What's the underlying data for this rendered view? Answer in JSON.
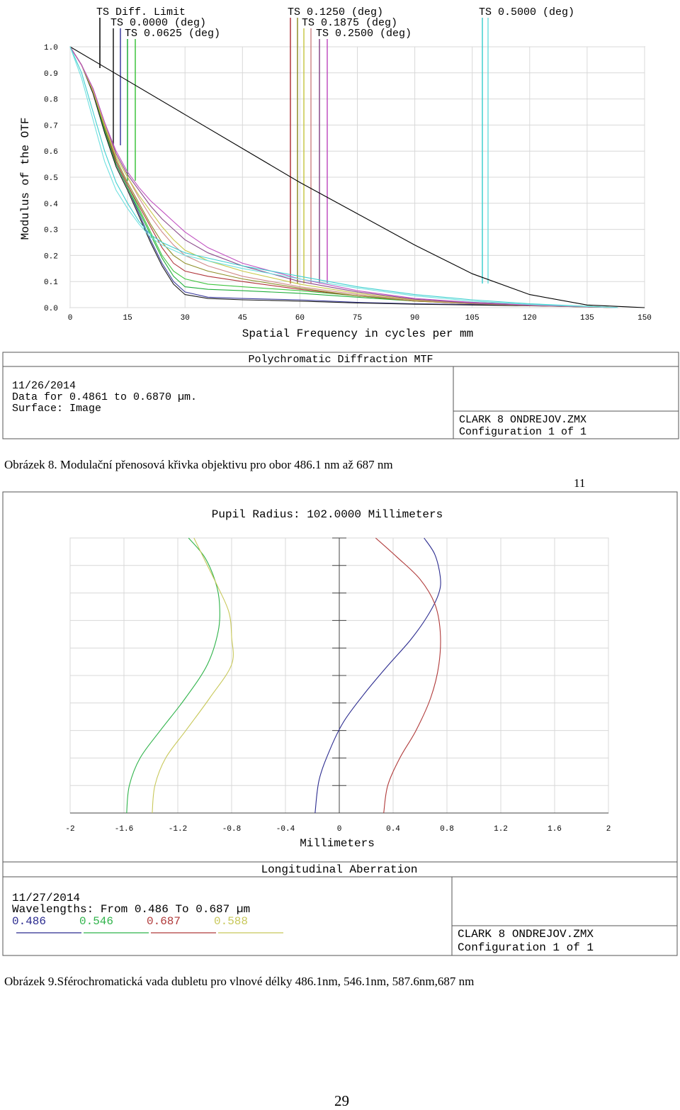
{
  "captions": {
    "fig8": "Obrázek 8. Modulační přenosová křivka objektivu pro obor 486.1 nm až 687 nm",
    "page_marker": "11",
    "fig9": "Obrázek 9.Sférochromatická vada dubletu pro vlnové délky 486.1nm, 546.1nm, 587.6nm,687 nm",
    "page_number": "29"
  },
  "chart_data": [
    {
      "type": "line",
      "title": "Polychromatic Diffraction MTF",
      "xlabel": "Spatial Frequency in cycles per mm",
      "ylabel": "Modulus of the OTF",
      "xlim": [
        0,
        150
      ],
      "ylim": [
        0,
        1
      ],
      "x_ticks": [
        "0",
        "15",
        "30",
        "45",
        "60",
        "75",
        "90",
        "105",
        "120",
        "135",
        "150"
      ],
      "y_ticks": [
        "0.0",
        "0.1",
        "0.2",
        "0.3",
        "0.4",
        "0.5",
        "0.6",
        "0.7",
        "0.8",
        "0.9",
        "1.0"
      ],
      "grid": true,
      "legend_placement": "top",
      "legend": [
        {
          "label": "TS Diff. Limit",
          "colors": [
            "#000000"
          ]
        },
        {
          "label": "TS 0.0000 (deg)",
          "colors": [
            "#1a1a1a",
            "#3d3d9e"
          ]
        },
        {
          "label": "TS 0.0625 (deg)",
          "colors": [
            "#1fae3a",
            "#3fc43f"
          ]
        },
        {
          "label": "TS 0.1250 (deg)",
          "colors": [
            "#b0343a",
            "#8f8f2a"
          ]
        },
        {
          "label": "TS 0.1875 (deg)",
          "colors": [
            "#c8c84a",
            "#d08a8a"
          ]
        },
        {
          "label": "TS 0.2500 (deg)",
          "colors": [
            "#8a4a8a",
            "#c050c0"
          ]
        },
        {
          "label": "TS 0.5000 (deg)",
          "colors": [
            "#40d0d0",
            "#70e0e0"
          ]
        }
      ],
      "series": [
        {
          "color": "#000000",
          "x": [
            0,
            15,
            30,
            45,
            60,
            75,
            90,
            105,
            120,
            135,
            150
          ],
          "y": [
            1.0,
            0.87,
            0.74,
            0.61,
            0.48,
            0.36,
            0.24,
            0.13,
            0.05,
            0.01,
            0.0
          ]
        },
        {
          "color": "#3d3d9e",
          "x": [
            0,
            3,
            6,
            9,
            12,
            15,
            18,
            21,
            24,
            27,
            30,
            36,
            45,
            60,
            75,
            90,
            105,
            120,
            135,
            143
          ],
          "y": [
            1.0,
            0.93,
            0.83,
            0.68,
            0.55,
            0.46,
            0.36,
            0.26,
            0.17,
            0.1,
            0.06,
            0.04,
            0.035,
            0.03,
            0.02,
            0.015,
            0.012,
            0.008,
            0.004,
            0.0
          ]
        },
        {
          "color": "#1a1a1a",
          "x": [
            0,
            3,
            6,
            9,
            12,
            15,
            18,
            21,
            24,
            27,
            30,
            36,
            45,
            60,
            75,
            90,
            105,
            120,
            135,
            143
          ],
          "y": [
            1.0,
            0.93,
            0.82,
            0.67,
            0.54,
            0.45,
            0.35,
            0.25,
            0.16,
            0.09,
            0.05,
            0.035,
            0.03,
            0.025,
            0.018,
            0.013,
            0.01,
            0.007,
            0.003,
            0.0
          ]
        },
        {
          "color": "#1fae3a",
          "x": [
            0,
            3,
            6,
            9,
            12,
            15,
            18,
            21,
            24,
            27,
            30,
            36,
            45,
            60,
            75,
            90,
            105,
            120,
            135,
            143
          ],
          "y": [
            1.0,
            0.93,
            0.83,
            0.68,
            0.55,
            0.46,
            0.37,
            0.28,
            0.19,
            0.12,
            0.08,
            0.07,
            0.065,
            0.055,
            0.04,
            0.025,
            0.018,
            0.01,
            0.005,
            0.0
          ]
        },
        {
          "color": "#3fc43f",
          "x": [
            0,
            3,
            6,
            9,
            12,
            15,
            18,
            21,
            24,
            27,
            30,
            36,
            45,
            60,
            75,
            90,
            105,
            120,
            135,
            143
          ],
          "y": [
            1.0,
            0.93,
            0.83,
            0.69,
            0.56,
            0.47,
            0.38,
            0.29,
            0.2,
            0.14,
            0.11,
            0.09,
            0.08,
            0.065,
            0.045,
            0.03,
            0.02,
            0.012,
            0.005,
            0.0
          ]
        },
        {
          "color": "#b0343a",
          "x": [
            0,
            3,
            6,
            9,
            12,
            15,
            18,
            21,
            24,
            27,
            30,
            36,
            45,
            60,
            75,
            90,
            105,
            120,
            135,
            143
          ],
          "y": [
            1.0,
            0.93,
            0.83,
            0.69,
            0.56,
            0.47,
            0.39,
            0.31,
            0.23,
            0.17,
            0.14,
            0.12,
            0.1,
            0.07,
            0.045,
            0.025,
            0.015,
            0.008,
            0.003,
            0.0
          ]
        },
        {
          "color": "#8f8f2a",
          "x": [
            0,
            3,
            6,
            9,
            12,
            15,
            18,
            21,
            24,
            27,
            30,
            36,
            45,
            60,
            75,
            90,
            105,
            120,
            135,
            143
          ],
          "y": [
            1.0,
            0.93,
            0.83,
            0.69,
            0.57,
            0.48,
            0.4,
            0.32,
            0.25,
            0.2,
            0.17,
            0.14,
            0.11,
            0.075,
            0.045,
            0.025,
            0.015,
            0.008,
            0.003,
            0.0
          ]
        },
        {
          "color": "#d08a8a",
          "x": [
            0,
            3,
            6,
            9,
            12,
            15,
            18,
            21,
            24,
            27,
            30,
            36,
            45,
            60,
            75,
            90,
            105,
            120,
            135,
            143
          ],
          "y": [
            1.0,
            0.93,
            0.83,
            0.7,
            0.58,
            0.5,
            0.42,
            0.35,
            0.29,
            0.24,
            0.2,
            0.16,
            0.12,
            0.08,
            0.05,
            0.028,
            0.016,
            0.008,
            0.003,
            0.0
          ]
        },
        {
          "color": "#c8c84a",
          "x": [
            0,
            3,
            6,
            9,
            12,
            15,
            18,
            21,
            24,
            27,
            30,
            36,
            45,
            60,
            75,
            90,
            105,
            120,
            135,
            143
          ],
          "y": [
            1.0,
            0.93,
            0.83,
            0.7,
            0.58,
            0.5,
            0.43,
            0.37,
            0.31,
            0.26,
            0.22,
            0.18,
            0.14,
            0.09,
            0.055,
            0.03,
            0.018,
            0.009,
            0.003,
            0.0
          ]
        },
        {
          "color": "#8a4a8a",
          "x": [
            0,
            3,
            6,
            9,
            12,
            15,
            18,
            21,
            24,
            27,
            30,
            36,
            45,
            60,
            75,
            90,
            105,
            120,
            135,
            143
          ],
          "y": [
            1.0,
            0.93,
            0.84,
            0.71,
            0.59,
            0.51,
            0.45,
            0.39,
            0.34,
            0.3,
            0.26,
            0.21,
            0.16,
            0.1,
            0.06,
            0.032,
            0.018,
            0.009,
            0.003,
            0.0
          ]
        },
        {
          "color": "#c050c0",
          "x": [
            0,
            3,
            6,
            9,
            12,
            15,
            18,
            21,
            24,
            27,
            30,
            36,
            45,
            60,
            75,
            90,
            105,
            120,
            135,
            143
          ],
          "y": [
            1.0,
            0.93,
            0.84,
            0.71,
            0.6,
            0.52,
            0.46,
            0.41,
            0.37,
            0.33,
            0.29,
            0.23,
            0.17,
            0.11,
            0.065,
            0.035,
            0.02,
            0.01,
            0.004,
            0.0
          ]
        },
        {
          "color": "#40d0d0",
          "x": [
            0,
            3,
            6,
            9,
            12,
            15,
            18,
            21,
            24,
            27,
            30,
            36,
            45,
            60,
            75,
            90,
            105,
            120,
            135,
            143
          ],
          "y": [
            1.0,
            0.9,
            0.75,
            0.6,
            0.48,
            0.4,
            0.33,
            0.28,
            0.25,
            0.23,
            0.21,
            0.19,
            0.16,
            0.12,
            0.08,
            0.05,
            0.03,
            0.015,
            0.005,
            0.0
          ]
        },
        {
          "color": "#70e0e0",
          "x": [
            0,
            3,
            6,
            9,
            12,
            15,
            18,
            21,
            24,
            27,
            30,
            36,
            45,
            60,
            75,
            90,
            105,
            120,
            135,
            143
          ],
          "y": [
            1.0,
            0.88,
            0.72,
            0.56,
            0.45,
            0.38,
            0.32,
            0.27,
            0.24,
            0.22,
            0.2,
            0.18,
            0.15,
            0.11,
            0.075,
            0.045,
            0.025,
            0.012,
            0.004,
            0.0
          ]
        }
      ],
      "info": {
        "date": "11/26/2014",
        "line2": "Data for 0.4861 to 0.6870 µm.",
        "line3": "Surface: Image",
        "file": "CLARK 8 ONDREJOV.ZMX",
        "config": "Configuration 1 of 1"
      }
    },
    {
      "type": "line",
      "title": "Longitudinal Aberration",
      "subtitle": "Pupil Radius: 102.0000 Millimeters",
      "xlabel": "Millimeters",
      "xlim": [
        -2,
        2
      ],
      "ylim": [
        0,
        1
      ],
      "x_ticks": [
        "-2",
        "-1.6",
        "-1.2",
        "-0.8",
        "-0.4",
        "0",
        "0.4",
        "0.8",
        "1.2",
        "1.6",
        "2"
      ],
      "grid": true,
      "series": [
        {
          "name": "0.486",
          "color": "#2b2b8f",
          "x": [
            -0.18,
            -0.15,
            -0.07,
            0.03,
            0.18,
            0.35,
            0.53,
            0.66,
            0.74,
            0.75,
            0.71,
            0.63
          ],
          "y": [
            0.0,
            0.12,
            0.23,
            0.33,
            0.43,
            0.53,
            0.63,
            0.72,
            0.8,
            0.86,
            0.94,
            1.0
          ]
        },
        {
          "name": "0.546",
          "color": "#2fb34a",
          "x": [
            -1.58,
            -1.56,
            -1.48,
            -1.33,
            -1.14,
            -0.98,
            -0.9,
            -0.89,
            -0.92,
            -1.0,
            -1.12
          ],
          "y": [
            0.0,
            0.1,
            0.2,
            0.3,
            0.42,
            0.54,
            0.66,
            0.76,
            0.84,
            0.93,
            1.0
          ]
        },
        {
          "name": "0.687",
          "color": "#b03a3a",
          "x": [
            0.33,
            0.36,
            0.45,
            0.57,
            0.68,
            0.74,
            0.75,
            0.71,
            0.6,
            0.43,
            0.27
          ],
          "y": [
            0.0,
            0.1,
            0.2,
            0.3,
            0.42,
            0.54,
            0.66,
            0.76,
            0.85,
            0.93,
            1.0
          ]
        },
        {
          "name": "0.588",
          "color": "#c8c85a",
          "x": [
            -1.39,
            -1.37,
            -1.29,
            -1.14,
            -0.96,
            -0.8,
            -0.8,
            -0.82,
            -0.9,
            -1.0,
            -1.08
          ],
          "y": [
            0.0,
            0.1,
            0.2,
            0.3,
            0.42,
            0.54,
            0.64,
            0.73,
            0.82,
            0.92,
            1.0
          ]
        }
      ],
      "info": {
        "date": "11/27/2014",
        "line2": "Wavelengths: From 0.486 To 0.687 µm",
        "legend_labels": [
          "0.486",
          "0.546",
          "0.687",
          "0.588"
        ],
        "legend_colors": [
          "#2b2b8f",
          "#2fb34a",
          "#b03a3a",
          "#c8c85a"
        ],
        "file": "CLARK 8 ONDREJOV.ZMX",
        "config": "Configuration 1 of 1"
      }
    }
  ]
}
